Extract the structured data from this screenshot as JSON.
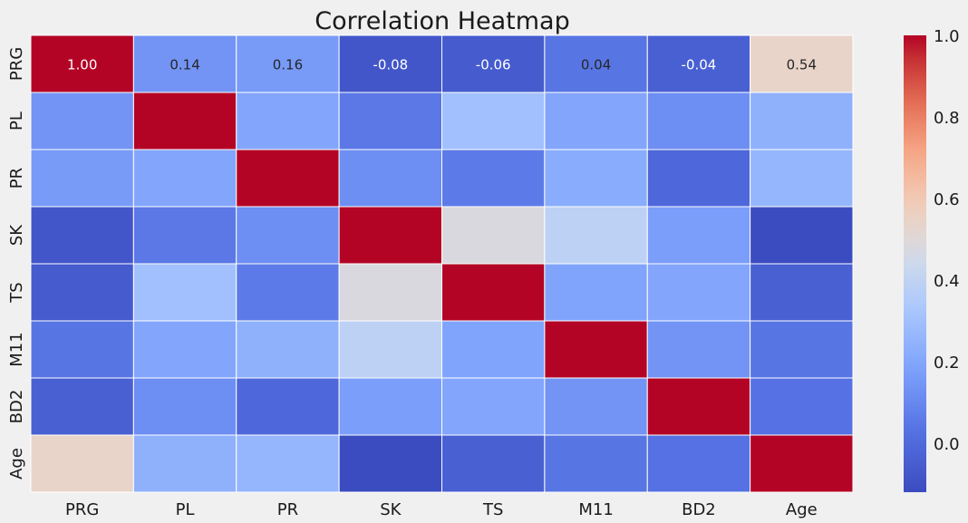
{
  "chart_data": {
    "type": "heatmap",
    "title": "Correlation Heatmap",
    "xlabel": "",
    "ylabel": "",
    "row_labels": [
      "PRG",
      "PL",
      "PR",
      "SK",
      "TS",
      "M11",
      "BD2",
      "Age"
    ],
    "col_labels": [
      "PRG",
      "PL",
      "PR",
      "SK",
      "TS",
      "M11",
      "BD2",
      "Age"
    ],
    "values": [
      [
        1.0,
        0.14,
        0.16,
        -0.08,
        -0.06,
        0.04,
        -0.04,
        0.54
      ],
      [
        0.14,
        1.0,
        0.2,
        0.05,
        0.3,
        0.2,
        0.12,
        0.24
      ],
      [
        0.16,
        0.2,
        1.0,
        0.12,
        0.06,
        0.22,
        -0.01,
        0.26
      ],
      [
        -0.08,
        0.05,
        0.12,
        1.0,
        0.48,
        0.39,
        0.17,
        -0.12
      ],
      [
        -0.06,
        0.3,
        0.06,
        0.48,
        1.0,
        0.19,
        0.2,
        -0.04
      ],
      [
        0.04,
        0.2,
        0.24,
        0.39,
        0.19,
        1.0,
        0.14,
        0.04
      ],
      [
        -0.04,
        0.12,
        -0.01,
        0.17,
        0.2,
        0.14,
        1.0,
        0.03
      ],
      [
        0.54,
        0.24,
        0.26,
        -0.12,
        -0.04,
        0.04,
        0.03,
        1.0
      ]
    ],
    "annotated_rows": [
      0
    ],
    "annotations": [
      "1.00",
      "0.14",
      "0.16",
      "-0.08",
      "-0.06",
      "0.04",
      "-0.04",
      "0.54"
    ],
    "colormap": "coolwarm",
    "color_range": [
      -0.12,
      1.0
    ],
    "colorbar_ticks": [
      "0.0",
      "0.2",
      "0.4",
      "0.6",
      "0.8",
      "1.0"
    ],
    "colorbar_tick_values": [
      0.0,
      0.2,
      0.4,
      0.6,
      0.8,
      1.0
    ],
    "grid": false,
    "cell_border_color": "#ffffff",
    "background_color": "#f0f0f0"
  }
}
